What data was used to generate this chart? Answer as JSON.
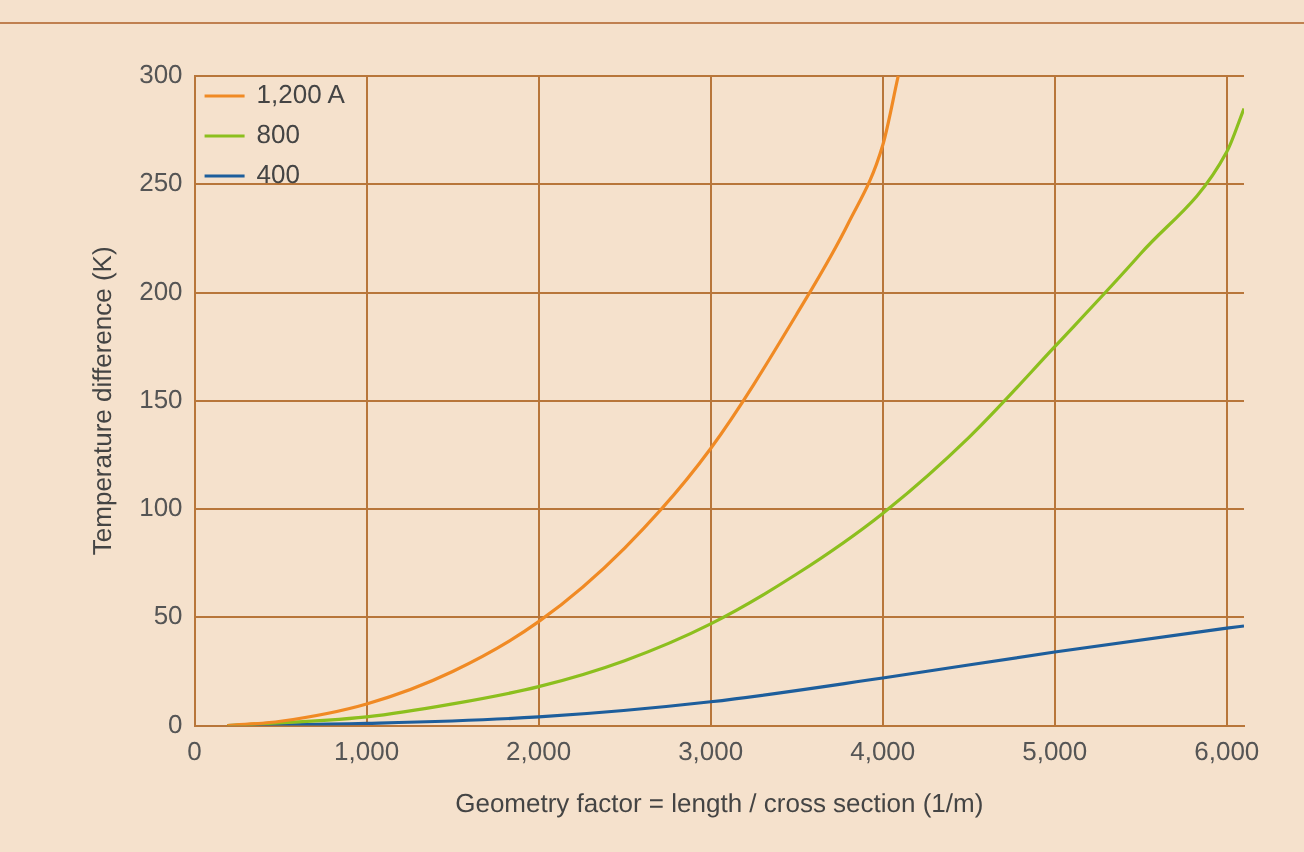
{
  "chart_data": {
    "type": "line",
    "xlabel": "Geometry factor = length / cross section (1/m)",
    "ylabel": "Temperature difference (K)",
    "xlim": [
      0,
      6100
    ],
    "xticks": [
      {
        "value": 0,
        "label": "0"
      },
      {
        "value": 1000,
        "label": "1,000"
      },
      {
        "value": 2000,
        "label": "2,000"
      },
      {
        "value": 3000,
        "label": "3,000"
      },
      {
        "value": 4000,
        "label": "4,000"
      },
      {
        "value": 5000,
        "label": "5,000"
      },
      {
        "value": 6000,
        "label": "6,000"
      }
    ],
    "ylim": [
      0,
      300
    ],
    "yticks": [
      0,
      50,
      100,
      150,
      200,
      250,
      300
    ],
    "grid": true,
    "legend": "top left",
    "marker": "none",
    "line_style": "solid",
    "series": [
      {
        "name": "1,200 A",
        "color": "#f08a24",
        "x": [
          190,
          500,
          1000,
          1500,
          2000,
          2500,
          3000,
          3500,
          3800,
          4000,
          4090
        ],
        "values": [
          0,
          2,
          10,
          25,
          48,
          82,
          128,
          190,
          232,
          268,
          300
        ]
      },
      {
        "name": "800",
        "color": "#8cbf1e",
        "x": [
          190,
          1000,
          1500,
          2000,
          2500,
          3000,
          3500,
          4000,
          4500,
          5000,
          5500,
          6000,
          6100
        ],
        "values": [
          0,
          4,
          10,
          18,
          30,
          47,
          70,
          98,
          133,
          175,
          218,
          265,
          285
        ]
      },
      {
        "name": "400",
        "color": "#1d5e9c",
        "x": [
          190,
          1000,
          2000,
          3000,
          4000,
          5000,
          6000,
          6100
        ],
        "values": [
          0,
          1,
          4,
          11,
          22,
          34,
          45,
          46
        ]
      }
    ]
  }
}
